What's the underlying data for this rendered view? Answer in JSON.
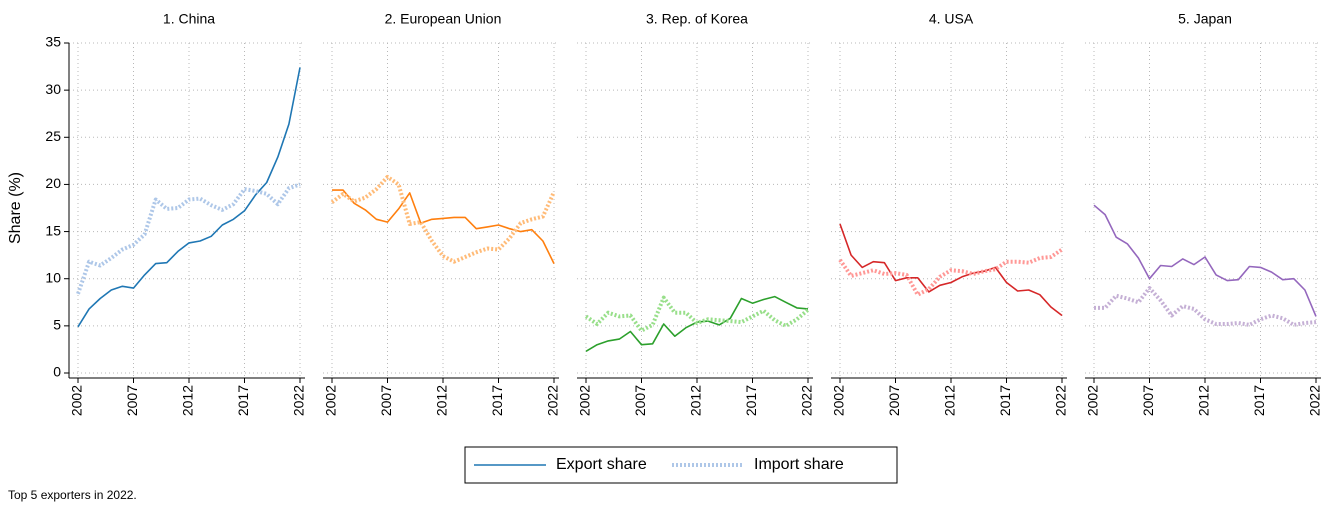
{
  "chart_data": [
    {
      "type": "line",
      "title": "1. China",
      "y_label": "Share (%)",
      "x": [
        2002,
        2003,
        2004,
        2005,
        2006,
        2007,
        2008,
        2009,
        2010,
        2011,
        2012,
        2013,
        2014,
        2015,
        2016,
        2017,
        2018,
        2019,
        2020,
        2021,
        2022
      ],
      "xlim": [
        2002,
        2022
      ],
      "xticks": [
        2002,
        2007,
        2012,
        2017,
        2022
      ],
      "ylim": [
        0,
        35
      ],
      "yticks": [
        0,
        5,
        10,
        15,
        20,
        25,
        30,
        35
      ],
      "grid": true,
      "series": [
        {
          "name": "Export share",
          "color": "#1f77b4",
          "line_style": "solid",
          "values": [
            4.9,
            6.8,
            7.9,
            8.8,
            9.2,
            9.0,
            10.4,
            11.6,
            11.7,
            12.9,
            13.8,
            14.0,
            14.5,
            15.7,
            16.3,
            17.2,
            18.9,
            20.2,
            22.9,
            26.4,
            32.4
          ]
        },
        {
          "name": "Import share",
          "color": "#aec7e8",
          "line_style": "dotted",
          "values": [
            8.4,
            11.8,
            11.4,
            12.2,
            13.1,
            13.6,
            14.7,
            18.4,
            17.4,
            17.5,
            18.4,
            18.5,
            17.8,
            17.3,
            17.9,
            19.5,
            19.3,
            19.0,
            17.9,
            19.6,
            20.0
          ]
        }
      ]
    },
    {
      "type": "line",
      "title": "2. European Union",
      "x": [
        2002,
        2003,
        2004,
        2005,
        2006,
        2007,
        2008,
        2009,
        2010,
        2011,
        2012,
        2013,
        2014,
        2015,
        2016,
        2017,
        2018,
        2019,
        2020,
        2021,
        2022
      ],
      "xlim": [
        2002,
        2022
      ],
      "xticks": [
        2002,
        2007,
        2012,
        2017,
        2022
      ],
      "ylim": [
        0,
        35
      ],
      "yticks": [
        0,
        5,
        10,
        15,
        20,
        25,
        30,
        35
      ],
      "grid": true,
      "series": [
        {
          "color": "#ff7f0e",
          "line_style": "solid",
          "values": [
            19.4,
            19.4,
            18.0,
            17.3,
            16.3,
            16.0,
            17.4,
            19.1,
            15.9,
            16.3,
            16.4,
            16.5,
            16.5,
            15.3,
            15.5,
            15.7,
            15.3,
            15.0,
            15.2,
            14.0,
            11.6
          ]
        },
        {
          "color": "#ffbb78",
          "line_style": "dotted",
          "values": [
            18.1,
            19.0,
            18.2,
            18.6,
            19.5,
            20.8,
            20.0,
            15.8,
            16.0,
            14.0,
            12.4,
            11.8,
            12.3,
            12.8,
            13.2,
            13.1,
            14.3,
            15.9,
            16.3,
            16.6,
            19.2
          ]
        }
      ]
    },
    {
      "type": "line",
      "title": "3. Rep. of Korea",
      "x": [
        2002,
        2003,
        2004,
        2005,
        2006,
        2007,
        2008,
        2009,
        2010,
        2011,
        2012,
        2013,
        2014,
        2015,
        2016,
        2017,
        2018,
        2019,
        2020,
        2021,
        2022
      ],
      "xlim": [
        2002,
        2022
      ],
      "xticks": [
        2002,
        2007,
        2012,
        2017,
        2022
      ],
      "ylim": [
        0,
        35
      ],
      "yticks": [
        0,
        5,
        10,
        15,
        20,
        25,
        30,
        35
      ],
      "grid": true,
      "series": [
        {
          "color": "#2ca02c",
          "line_style": "solid",
          "values": [
            2.3,
            3.0,
            3.4,
            3.6,
            4.4,
            3.0,
            3.1,
            5.2,
            3.9,
            4.8,
            5.4,
            5.5,
            5.1,
            5.8,
            7.9,
            7.4,
            7.8,
            8.1,
            7.5,
            6.9,
            6.8
          ]
        },
        {
          "color": "#98df8a",
          "line_style": "dotted",
          "values": [
            6.0,
            5.2,
            6.4,
            6.0,
            6.1,
            4.5,
            5.1,
            8.0,
            6.4,
            6.4,
            5.3,
            5.7,
            5.6,
            5.5,
            5.4,
            6.0,
            6.6,
            5.6,
            5.0,
            5.7,
            6.7
          ]
        }
      ]
    },
    {
      "type": "line",
      "title": "4. USA",
      "x": [
        2002,
        2003,
        2004,
        2005,
        2006,
        2007,
        2008,
        2009,
        2010,
        2011,
        2012,
        2013,
        2014,
        2015,
        2016,
        2017,
        2018,
        2019,
        2020,
        2021,
        2022
      ],
      "xlim": [
        2002,
        2022
      ],
      "xticks": [
        2002,
        2007,
        2012,
        2017,
        2022
      ],
      "ylim": [
        0,
        35
      ],
      "yticks": [
        0,
        5,
        10,
        15,
        20,
        25,
        30,
        35
      ],
      "grid": true,
      "series": [
        {
          "color": "#d62728",
          "line_style": "solid",
          "values": [
            15.8,
            12.5,
            11.2,
            11.8,
            11.7,
            9.8,
            10.1,
            10.1,
            8.6,
            9.3,
            9.6,
            10.2,
            10.6,
            10.8,
            11.2,
            9.6,
            8.7,
            8.8,
            8.3,
            7.0,
            6.1
          ]
        },
        {
          "color": "#ff9896",
          "line_style": "dotted",
          "values": [
            12.0,
            10.3,
            10.6,
            10.9,
            10.5,
            10.6,
            10.4,
            8.3,
            8.9,
            10.2,
            10.9,
            10.8,
            10.5,
            10.8,
            11.0,
            11.8,
            11.8,
            11.7,
            12.2,
            12.3,
            13.1
          ]
        }
      ]
    },
    {
      "type": "line",
      "title": "5. Japan",
      "x": [
        2002,
        2003,
        2004,
        2005,
        2006,
        2007,
        2008,
        2009,
        2010,
        2011,
        2012,
        2013,
        2014,
        2015,
        2016,
        2017,
        2018,
        2019,
        2020,
        2021,
        2022
      ],
      "xlim": [
        2002,
        2022
      ],
      "xticks": [
        2002,
        2007,
        2012,
        2017,
        2022
      ],
      "ylim": [
        0,
        35
      ],
      "yticks": [
        0,
        5,
        10,
        15,
        20,
        25,
        30,
        35
      ],
      "grid": true,
      "series": [
        {
          "color": "#9467bd",
          "line_style": "solid",
          "values": [
            17.8,
            16.8,
            14.4,
            13.7,
            12.2,
            10.0,
            11.4,
            11.3,
            12.1,
            11.5,
            12.3,
            10.4,
            9.8,
            9.9,
            11.3,
            11.2,
            10.7,
            9.9,
            10.0,
            8.8,
            6.0
          ]
        },
        {
          "color": "#c5b0d5",
          "line_style": "dotted",
          "values": [
            6.9,
            6.9,
            8.2,
            7.9,
            7.5,
            9.0,
            7.7,
            6.1,
            7.1,
            6.8,
            5.7,
            5.2,
            5.2,
            5.3,
            5.1,
            5.7,
            6.1,
            5.8,
            5.1,
            5.3,
            5.4
          ]
        }
      ]
    }
  ],
  "note": "Top 5 exporters in 2022."
}
